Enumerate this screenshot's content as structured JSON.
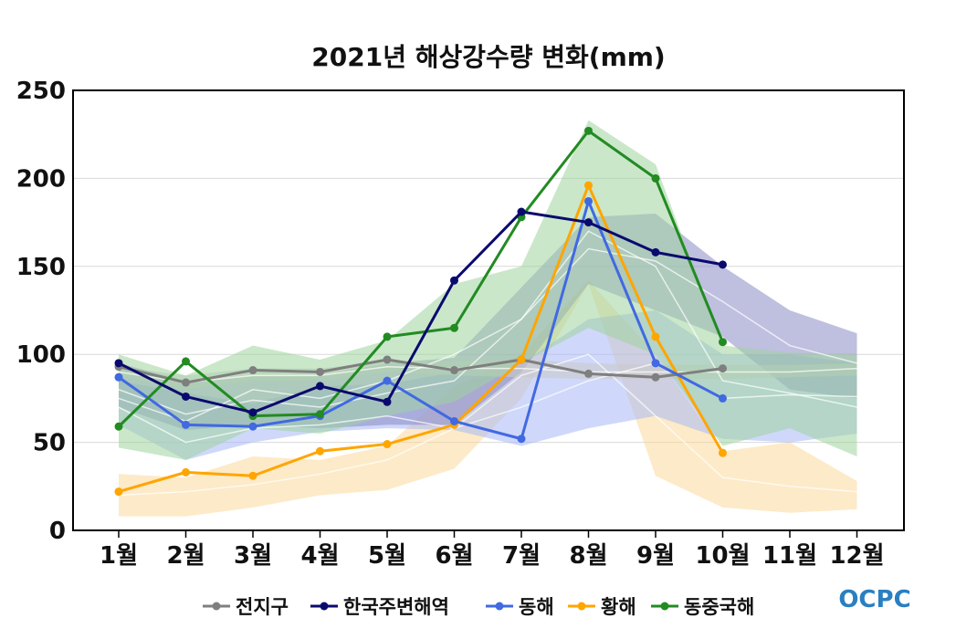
{
  "chart_data": {
    "type": "line",
    "title": "2021년 해상강수량 변화(mm)",
    "xlabel": "",
    "ylabel": "",
    "categories": [
      "1월",
      "2월",
      "3월",
      "4월",
      "5월",
      "6월",
      "7월",
      "8월",
      "9월",
      "10월",
      "11월",
      "12월"
    ],
    "yticks": [
      "0",
      "50",
      "100",
      "150",
      "200",
      "250"
    ],
    "ylim": [
      0,
      250
    ],
    "grid": "horizontal",
    "legend_position": "bottom",
    "series": [
      {
        "name": "전지구",
        "color": "#7f7f7f",
        "values": [
          93,
          84,
          91,
          90,
          97,
          91,
          97,
          89,
          87,
          92,
          null,
          null
        ],
        "band_low": [
          88,
          80,
          85,
          85,
          90,
          88,
          87,
          86,
          86,
          86,
          87,
          88
        ],
        "band_high": [
          93,
          88,
          92,
          92,
          96,
          96,
          97,
          95,
          94,
          94,
          94,
          95
        ],
        "band_mean": [
          90,
          84,
          88,
          88,
          93,
          92,
          92,
          90,
          90,
          90,
          90,
          92
        ],
        "band_color": "#c9c9c9"
      },
      {
        "name": "한국주변해역",
        "color": "#0a0a6e",
        "values": [
          95,
          76,
          67,
          82,
          73,
          142,
          181,
          175,
          158,
          151,
          null,
          null
        ],
        "band_low": [
          70,
          57,
          60,
          58,
          60,
          60,
          90,
          140,
          125,
          110,
          80,
          75
        ],
        "band_high": [
          95,
          85,
          88,
          88,
          95,
          98,
          138,
          178,
          180,
          150,
          125,
          112
        ],
        "band_mean": [
          80,
          66,
          74,
          70,
          78,
          85,
          120,
          160,
          153,
          130,
          105,
          95
        ],
        "band_color": "#8a8ac4"
      },
      {
        "name": "동해",
        "color": "#4169e1",
        "values": [
          87,
          60,
          59,
          65,
          85,
          62,
          52,
          187,
          95,
          75,
          null,
          null
        ],
        "band_low": [
          60,
          40,
          50,
          56,
          58,
          57,
          48,
          58,
          65,
          52,
          50,
          55
        ],
        "band_high": [
          85,
          78,
          72,
          82,
          83,
          90,
          95,
          120,
          125,
          100,
          100,
          95
        ],
        "band_mean": [
          70,
          50,
          58,
          60,
          65,
          58,
          70,
          85,
          95,
          75,
          77,
          76
        ],
        "band_color": "#a8b8f5"
      },
      {
        "name": "황해",
        "color": "#ffa500",
        "values": [
          22,
          33,
          31,
          45,
          49,
          60,
          97,
          196,
          110,
          44,
          null,
          null
        ],
        "band_low": [
          8,
          8,
          13,
          20,
          23,
          35,
          75,
          140,
          31,
          13,
          10,
          12
        ],
        "band_high": [
          32,
          30,
          42,
          40,
          48,
          82,
          100,
          142,
          100,
          45,
          50,
          28
        ],
        "band_mean": [
          20,
          22,
          26,
          32,
          40,
          58,
          88,
          100,
          65,
          30,
          25,
          22
        ],
        "band_color": "#fbd89a"
      },
      {
        "name": "동중국해",
        "color": "#228b22",
        "values": [
          59,
          96,
          65,
          66,
          110,
          115,
          178,
          227,
          200,
          107,
          null,
          null
        ],
        "band_low": [
          47,
          40,
          58,
          55,
          65,
          73,
          95,
          115,
          100,
          48,
          58,
          42
        ],
        "band_high": [
          100,
          88,
          105,
          97,
          108,
          140,
          150,
          233,
          208,
          105,
          101,
          100
        ],
        "band_mean": [
          75,
          62,
          80,
          75,
          85,
          100,
          120,
          170,
          150,
          85,
          78,
          70
        ],
        "band_color": "#9fd49f"
      }
    ]
  },
  "logo": {
    "text": "OCPC"
  }
}
